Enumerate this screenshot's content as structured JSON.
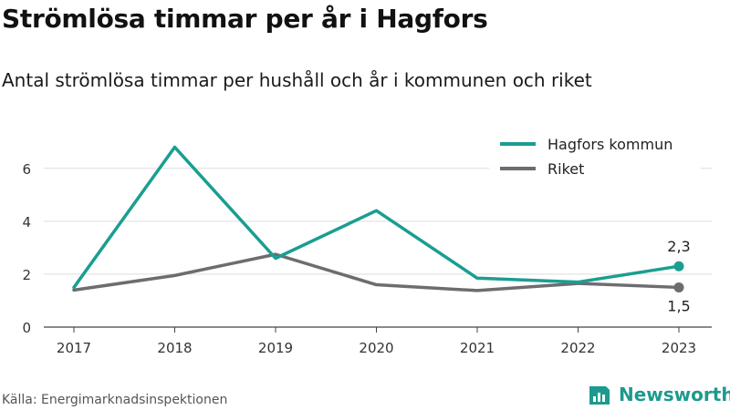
{
  "title": "Strömlösa timmar per år i Hagfors",
  "subtitle": "Antal strömlösa timmar per hushåll och år i kommunen och riket",
  "source": "Källa: Energimarknadsinspektionen",
  "brand": {
    "name": "Newsworthy",
    "icon": "newsworthy-logo-icon",
    "color": "#1d9a8e"
  },
  "chart_data": {
    "type": "line",
    "categories": [
      "2017",
      "2018",
      "2019",
      "2020",
      "2021",
      "2022",
      "2023"
    ],
    "ylim": [
      0,
      7.3
    ],
    "yticks": [
      0,
      2,
      4,
      6
    ],
    "grid": true,
    "legend_position": "top-right",
    "series": [
      {
        "name": "Hagfors kommun",
        "color": "#1a9e91",
        "values": [
          1.5,
          6.8,
          2.6,
          4.4,
          1.85,
          1.7,
          2.3
        ],
        "end_label": "2,3"
      },
      {
        "name": "Riket",
        "color": "#6e6c70",
        "values": [
          1.4,
          1.95,
          2.75,
          1.6,
          1.38,
          1.65,
          1.5
        ],
        "end_label": "1,5"
      }
    ]
  }
}
